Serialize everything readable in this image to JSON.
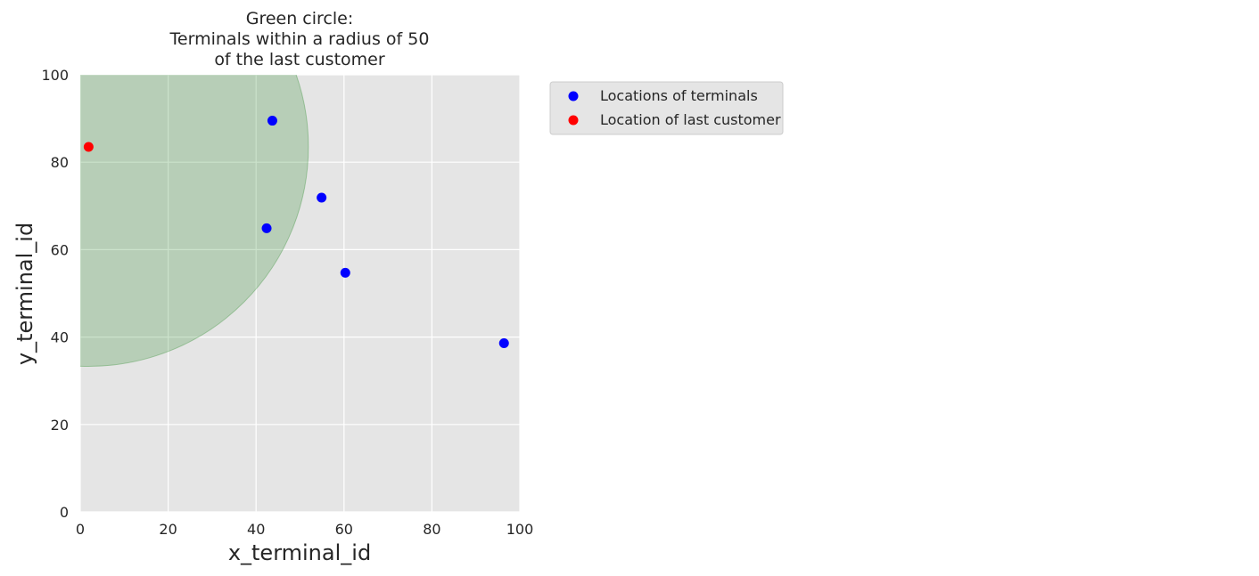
{
  "chart_data": {
    "type": "scatter",
    "title_lines": [
      "Green circle:",
      "Terminals within a radius of 50",
      "of the last customer"
    ],
    "xlabel": "x_terminal_id",
    "ylabel": "y_terminal_id",
    "xlim": [
      0,
      100
    ],
    "ylim": [
      0,
      100
    ],
    "xticks": [
      0,
      20,
      40,
      60,
      80,
      100
    ],
    "yticks": [
      0,
      20,
      40,
      60,
      80,
      100
    ],
    "grid": true,
    "legend_position": "outside-upper-right",
    "series": [
      {
        "name": "Locations of terminals",
        "color": "#0000ff",
        "points": [
          {
            "x": 43.7,
            "y": 89.5
          },
          {
            "x": 54.9,
            "y": 71.9
          },
          {
            "x": 42.4,
            "y": 64.9
          },
          {
            "x": 60.3,
            "y": 54.7
          },
          {
            "x": 96.4,
            "y": 38.6
          }
        ]
      },
      {
        "name": "Location of last customer",
        "color": "#ff0000",
        "points": [
          {
            "x": 1.9,
            "y": 83.5
          }
        ]
      }
    ],
    "circle": {
      "center_x": 1.9,
      "center_y": 83.5,
      "radius": 50,
      "color": "#2e8b2e",
      "opacity": 0.25
    },
    "colors": {
      "plot_background": "#e5e5e5",
      "grid": "#ffffff"
    }
  }
}
